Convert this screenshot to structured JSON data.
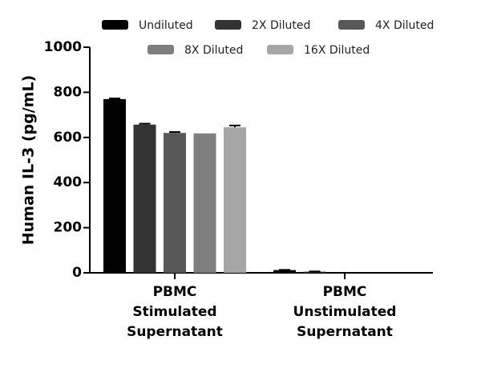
{
  "chart_data": {
    "type": "bar",
    "y_label": "Human IL-3 (pg/mL)",
    "categories": [
      "PBMC\nStimulated\nSupernatant",
      "PBMC\nUnstimulated\nSupernatant"
    ],
    "series": [
      {
        "name": "Undiluted",
        "color": "#000000",
        "values": [
          770,
          12
        ],
        "errors": [
          3,
          1
        ]
      },
      {
        "name": "2X Diluted",
        "color": "#333333",
        "values": [
          657,
          5
        ],
        "errors": [
          4,
          1
        ]
      },
      {
        "name": "4X Diluted",
        "color": "#585858",
        "values": [
          620,
          0
        ],
        "errors": [
          4,
          0
        ]
      },
      {
        "name": "8X Diluted",
        "color": "#7f7f7f",
        "values": [
          618,
          0
        ],
        "errors": [
          0,
          0
        ]
      },
      {
        "name": "16X Diluted",
        "color": "#a6a6a6",
        "values": [
          645,
          0
        ],
        "errors": [
          8,
          0
        ]
      }
    ],
    "ylim": [
      0,
      1000
    ],
    "yticks": [
      0,
      200,
      400,
      600,
      800,
      1000
    ]
  }
}
